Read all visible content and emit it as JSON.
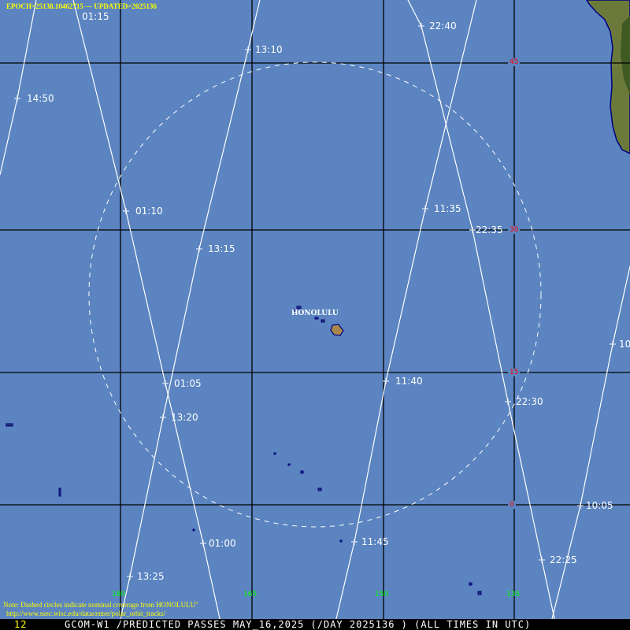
{
  "header": {
    "epoch_text": "EPOCH=25138.10462715 --- UPDATED=2025136"
  },
  "station": {
    "name": "HONOLULU"
  },
  "latitude_labels": [
    "45",
    "30",
    "15",
    "0"
  ],
  "longitude_labels": [
    "180",
    "165",
    "150",
    "135"
  ],
  "pass_times": {
    "track_1450": [
      "14:50"
    ],
    "track_01": [
      "01:15",
      "01:10",
      "01:05",
      "01:00"
    ],
    "track_13": [
      "13:10",
      "13:15",
      "13:20",
      "13:25"
    ],
    "track_22": [
      "22:40",
      "22:35",
      "22:30",
      "22:25"
    ],
    "track_11": [
      "11:35",
      "11:40",
      "11:45"
    ],
    "track_10": [
      "10",
      "10:05"
    ]
  },
  "note": {
    "line1": "Note: Dashed circles indicate nominal coverage from HONOLULU\"",
    "line2": "http://www.ssec.wisc.edu/datacenter/polar_orbit_tracks/"
  },
  "footer": {
    "left_number": "12",
    "title": "GCOM-W1 /PREDICTED PASSES MAY_16,2025 (/DAY 2025136 ) (ALL TIMES IN UTC)"
  },
  "colors": {
    "ocean": "#5b84c0",
    "latitude_label": "#ff0000",
    "longitude_label": "#00ff00",
    "note": "#ffff00",
    "track": "#ffffff"
  }
}
